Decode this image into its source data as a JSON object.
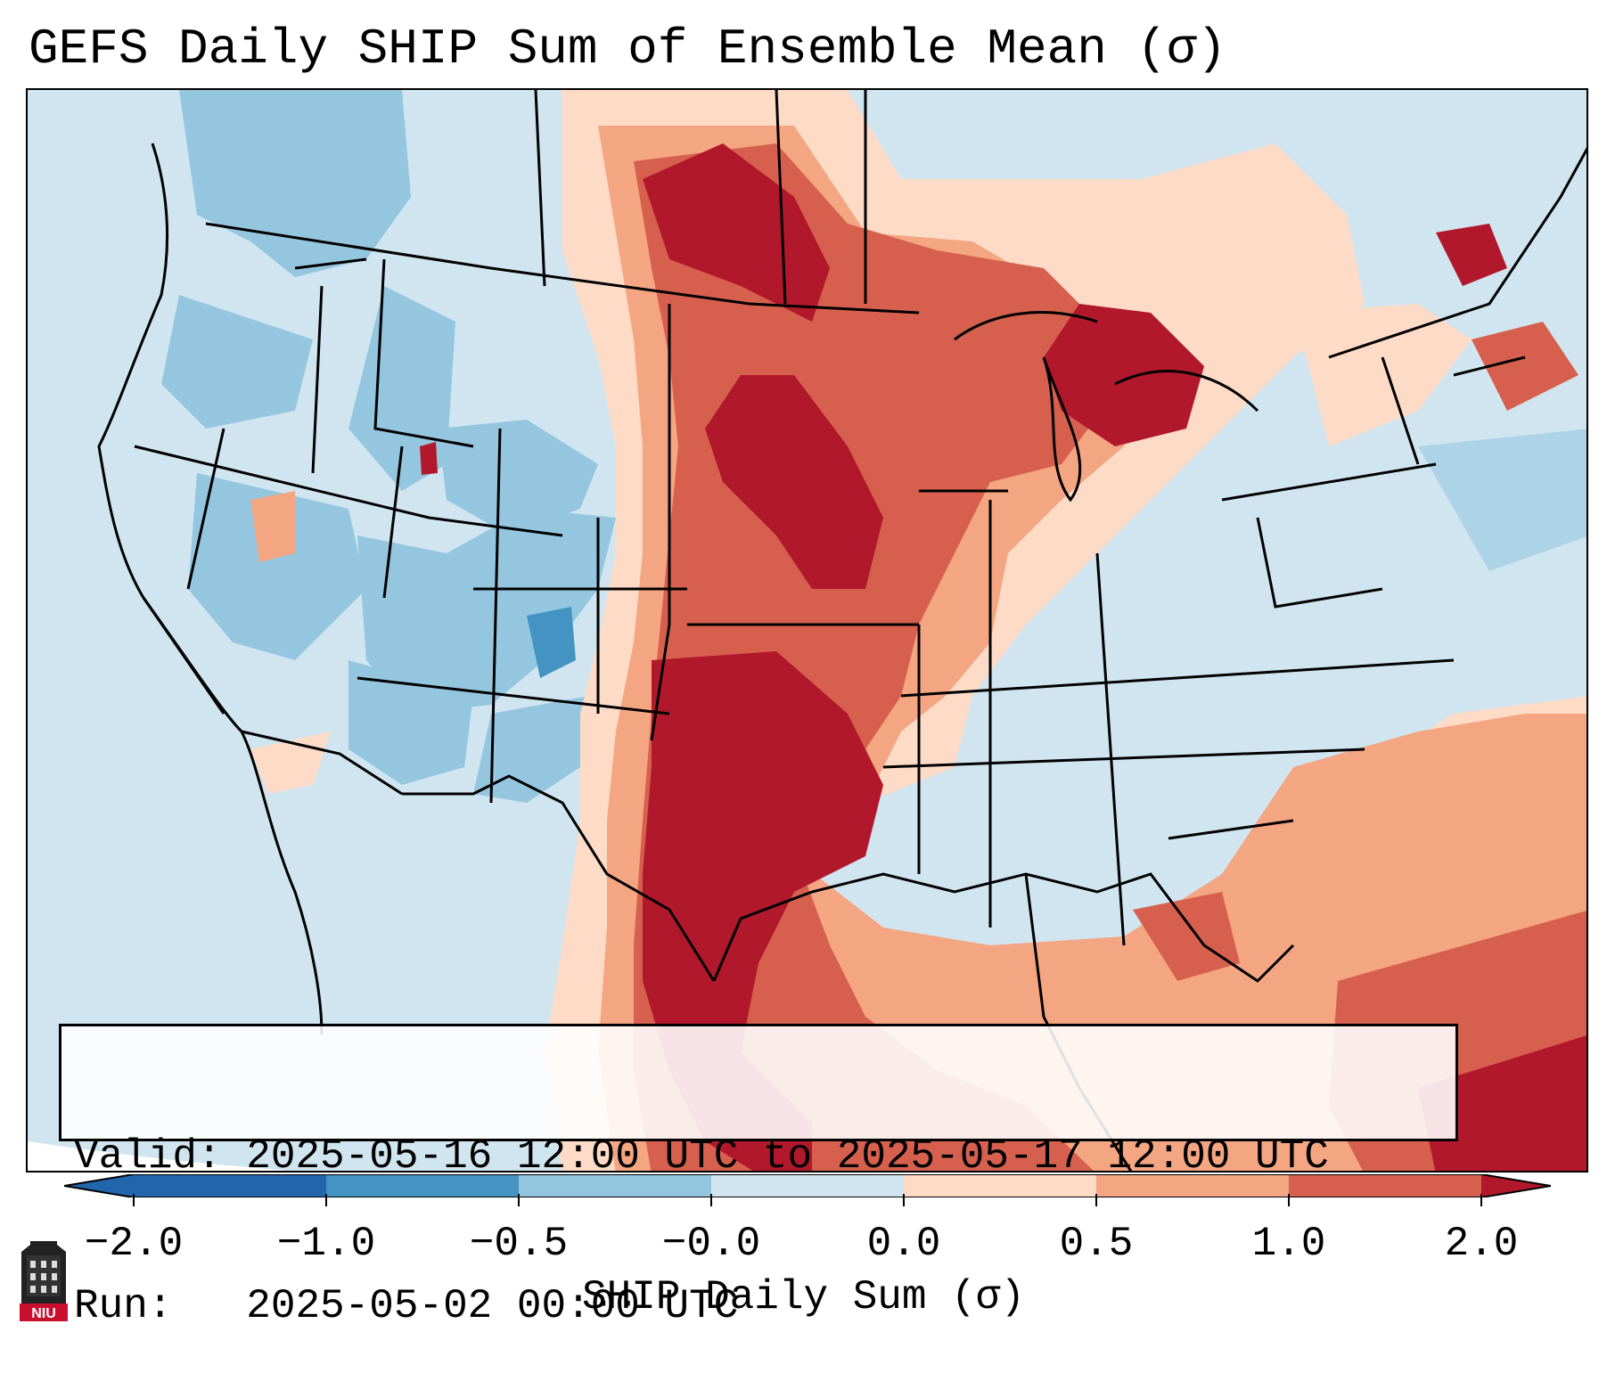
{
  "title": "GEFS Daily SHIP Sum of Ensemble Mean (σ)",
  "info": {
    "valid": "Valid: 2025-05-16 12:00 UTC to 2025-05-17 12:00 UTC",
    "run": "Run:   2025-05-02 00:00 UTC"
  },
  "colorbar": {
    "label": "SHIP Daily Sum (σ)",
    "ticks": [
      "−2.0",
      "−1.0",
      "−0.5",
      "−0.0",
      "0.0",
      "0.5",
      "1.0",
      "2.0"
    ],
    "colors": [
      "#2166ac",
      "#4393c3",
      "#92c5de",
      "#d1e5f0",
      "#fddbc7",
      "#f4a582",
      "#d6604d",
      "#b2182b"
    ],
    "extend_low_color": "#2166ac",
    "extend_high_color": "#b2182b"
  },
  "logo": {
    "text": "NIU",
    "color": "#c8102e"
  },
  "map": {
    "region": "Contiguous United States and surrounding areas",
    "background_color": "#d1e5f0",
    "boundary_color": "#000000"
  }
}
